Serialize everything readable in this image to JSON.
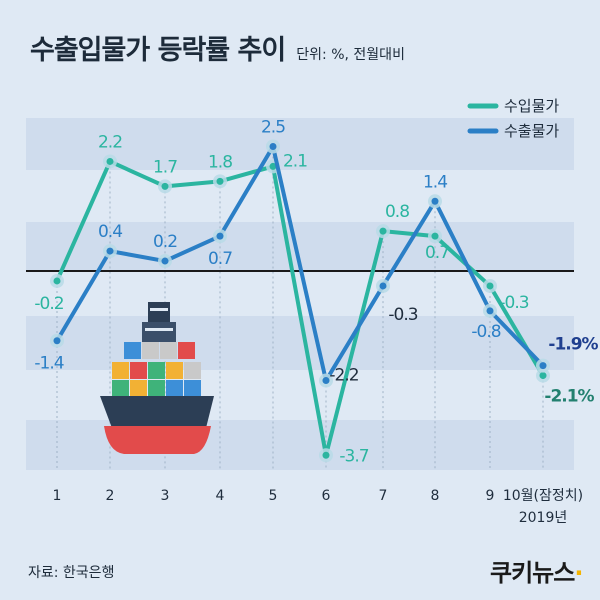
{
  "title": "수출입물가 등락률 추이",
  "subtitle": "단위: %, 전월대비",
  "source": "자료: 한국은행",
  "logo": {
    "text": "쿠키뉴스"
  },
  "colors": {
    "import": "#2bb5a0",
    "export": "#2b7fc6",
    "band": "#cfdced",
    "bg": "#dfe9f4",
    "ship_hull": "#2c3e55",
    "ship_bottom": "#e24b4b"
  },
  "chart_data": {
    "type": "line",
    "categories": [
      "1",
      "2",
      "3",
      "4",
      "5",
      "6",
      "7",
      "8",
      "9",
      "10월(잠정치)"
    ],
    "x_sublabel": "2019년",
    "series": [
      {
        "name": "수입물가",
        "values": [
          -0.2,
          2.2,
          1.7,
          1.8,
          2.1,
          -3.7,
          0.8,
          0.7,
          -0.3,
          -2.1
        ],
        "labels": [
          "-0.2",
          "2.2",
          "1.7",
          "1.8",
          "2.1",
          "-3.7",
          "0.8",
          "0.7",
          "-0.3",
          "-2.1%"
        ]
      },
      {
        "name": "수출물가",
        "values": [
          -1.4,
          0.4,
          0.2,
          0.7,
          2.5,
          -2.2,
          -0.3,
          1.4,
          -0.8,
          -1.9
        ],
        "labels": [
          "-1.4",
          "0.4",
          "0.2",
          "0.7",
          "2.5",
          "-2.2",
          "-0.3",
          "1.4",
          "-0.8",
          "-1.9%"
        ]
      }
    ],
    "legend_position": "top-right",
    "zero_line": true
  }
}
